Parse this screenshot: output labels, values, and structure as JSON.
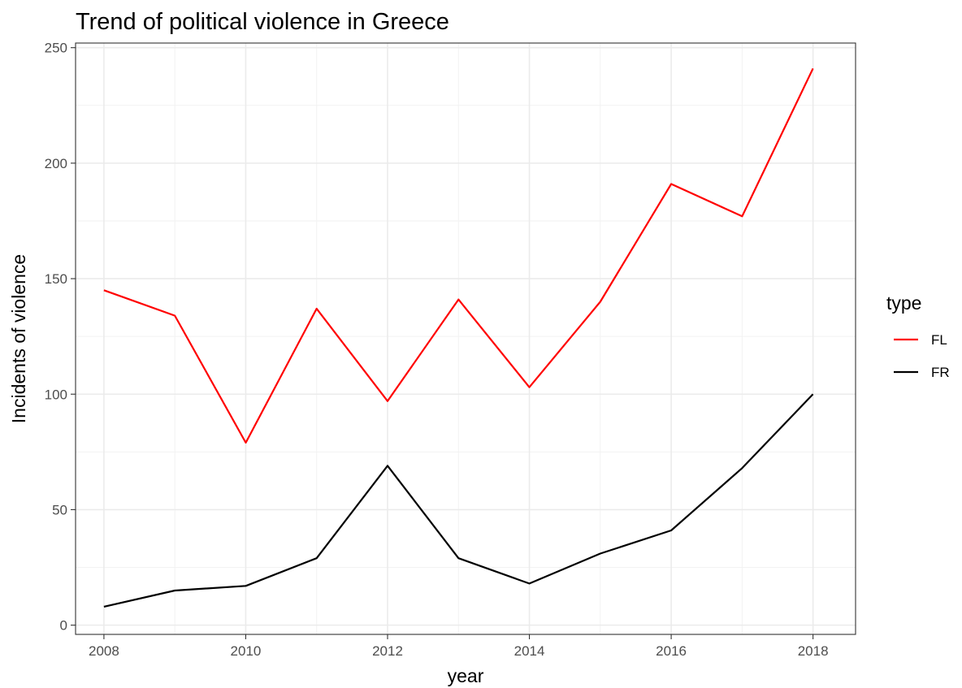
{
  "chart_data": {
    "type": "line",
    "title": "Trend of political violence in Greece",
    "xlabel": "year",
    "ylabel": "Incidents of violence",
    "x": [
      2008,
      2009,
      2010,
      2011,
      2012,
      2013,
      2014,
      2015,
      2016,
      2017,
      2018
    ],
    "xlim": [
      2007.6,
      2018.6
    ],
    "ylim": [
      -4,
      252
    ],
    "xticks": [
      2008,
      2010,
      2012,
      2014,
      2016,
      2018
    ],
    "yticks": [
      0,
      50,
      100,
      150,
      200,
      250
    ],
    "grid": true,
    "legend": {
      "title": "type",
      "position": "right"
    },
    "series": [
      {
        "name": "FL",
        "color": "#ff0000",
        "values": [
          145,
          134,
          79,
          137,
          97,
          141,
          103,
          140,
          191,
          177,
          241
        ]
      },
      {
        "name": "FR",
        "color": "#000000",
        "values": [
          8,
          15,
          17,
          29,
          69,
          29,
          18,
          31,
          41,
          68,
          100
        ]
      }
    ]
  }
}
